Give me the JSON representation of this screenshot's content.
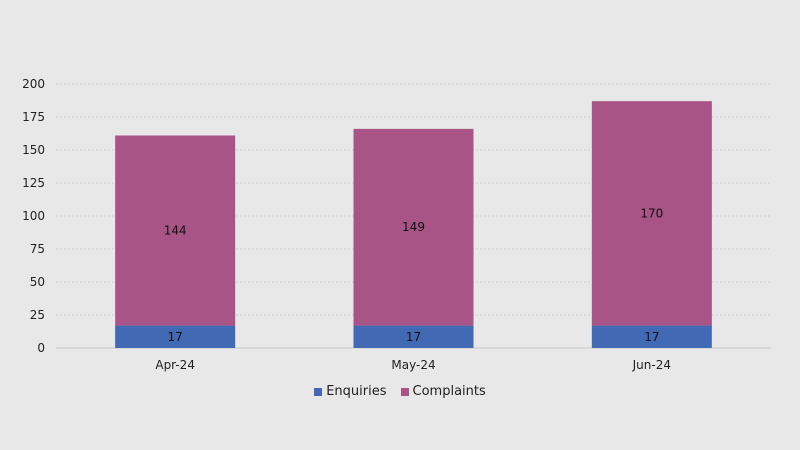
{
  "chart_data": {
    "type": "bar",
    "stacked": true,
    "categories": [
      "Apr-24",
      "May-24",
      "Jun-24"
    ],
    "series": [
      {
        "name": "Enquiries",
        "values": [
          17,
          17,
          17
        ],
        "color": "#4169b4"
      },
      {
        "name": "Complaints",
        "values": [
          144,
          149,
          170
        ],
        "color": "#a85487"
      }
    ],
    "yticks": [
      0,
      25,
      50,
      75,
      100,
      125,
      150,
      175,
      200
    ],
    "ylim": [
      0,
      200
    ],
    "grid": true,
    "legend_position": "bottom"
  }
}
